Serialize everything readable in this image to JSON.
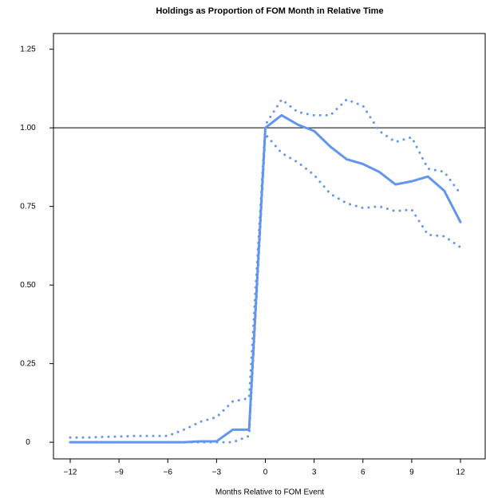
{
  "chart_data": {
    "type": "line",
    "title": "Holdings as Proportion of FOM Month in Relative Time",
    "x_label": "Months Relative to FOM Event",
    "x": [
      -12,
      -11,
      -10,
      -9,
      -8,
      -7,
      -6,
      -5,
      -4,
      -3,
      -2,
      -1,
      0,
      1,
      2,
      3,
      4,
      5,
      6,
      7,
      8,
      9,
      10,
      11,
      12
    ],
    "series": [
      {
        "color": "#6495ed",
        "line_style": "solid",
        "values": [
          0,
          0,
          0,
          0,
          0,
          0,
          0,
          0,
          0.003,
          0.003,
          0.04,
          0.04,
          1.0,
          1.04,
          1.01,
          0.99,
          0.94,
          0.9,
          0.885,
          0.86,
          0.82,
          0.83,
          0.845,
          0.8,
          0.7
        ]
      },
      {
        "color": "#6495ed",
        "line_style": "dotted",
        "values": [
          0.015,
          0.015,
          0.017,
          0.018,
          0.02,
          0.02,
          0.02,
          0.04,
          0.065,
          0.08,
          0.13,
          0.14,
          1.01,
          1.09,
          1.05,
          1.04,
          1.04,
          1.09,
          1.07,
          0.99,
          0.955,
          0.97,
          0.87,
          0.86,
          0.79
        ]
      },
      {
        "color": "#6495ed",
        "line_style": "dotted",
        "values": [
          0,
          0,
          0,
          0,
          0,
          0,
          0,
          0,
          0,
          0,
          0,
          0.02,
          0.98,
          0.92,
          0.89,
          0.85,
          0.79,
          0.76,
          0.745,
          0.75,
          0.735,
          0.74,
          0.66,
          0.655,
          0.62
        ]
      }
    ],
    "xlim": [
      -13.03,
      13.52
    ],
    "ylim": [
      -0.053,
      1.3
    ],
    "xticks": [
      {
        "value": -12,
        "label": "−12"
      },
      {
        "value": -9,
        "label": "−9"
      },
      {
        "value": -6,
        "label": "−6"
      },
      {
        "value": -3,
        "label": "−3"
      },
      0,
      3,
      6,
      9,
      12
    ],
    "yticks": [
      0,
      0.25,
      {
        "value": 0.5,
        "label": "0.50"
      },
      0.75,
      {
        "value": 1,
        "label": "1.00"
      },
      1.25
    ],
    "hline": 1,
    "hline_color": "#000000"
  }
}
